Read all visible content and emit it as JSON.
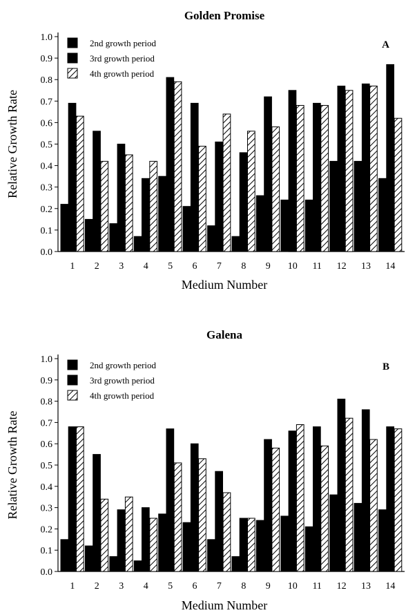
{
  "chart_data": [
    {
      "type": "bar",
      "title": "Golden Promise",
      "panel": "A",
      "xlabel": "Medium Number",
      "ylabel": "Relative Growth Rate",
      "ylim": [
        0,
        1.0
      ],
      "yticks": [
        "0.0",
        "0.1",
        "0.2",
        "0.3",
        "0.4",
        "0.5",
        "0.6",
        "0.7",
        "0.8",
        "0.9",
        "1.0"
      ],
      "categories": [
        "1",
        "2",
        "3",
        "4",
        "5",
        "6",
        "7",
        "8",
        "9",
        "10",
        "11",
        "12",
        "13",
        "14"
      ],
      "legend_position": "top-left",
      "series": [
        {
          "name": "2nd growth period",
          "style": "solid",
          "values": [
            0.22,
            0.15,
            0.13,
            0.07,
            0.35,
            0.21,
            0.12,
            0.07,
            0.26,
            0.24,
            0.24,
            0.42,
            0.42,
            0.34
          ]
        },
        {
          "name": "3rd growth period",
          "style": "solid",
          "values": [
            0.69,
            0.56,
            0.5,
            0.34,
            0.81,
            0.69,
            0.51,
            0.46,
            0.72,
            0.75,
            0.69,
            0.77,
            0.78,
            0.87
          ]
        },
        {
          "name": "4th growth period",
          "style": "hatched",
          "values": [
            0.63,
            0.42,
            0.45,
            0.42,
            0.79,
            0.49,
            0.64,
            0.56,
            0.58,
            0.68,
            0.68,
            0.75,
            0.77,
            0.62
          ]
        }
      ]
    },
    {
      "type": "bar",
      "title": "Galena",
      "panel": "B",
      "xlabel": "Medium Number",
      "ylabel": "Relative Growth Rate",
      "ylim": [
        0,
        1.0
      ],
      "yticks": [
        "0.0",
        "0.1",
        "0.2",
        "0.3",
        "0.4",
        "0.5",
        "0.6",
        "0.7",
        "0.8",
        "0.9",
        "1.0"
      ],
      "categories": [
        "1",
        "2",
        "3",
        "4",
        "5",
        "6",
        "7",
        "8",
        "9",
        "10",
        "11",
        "12",
        "13",
        "14"
      ],
      "legend_position": "top-left",
      "series": [
        {
          "name": "2nd growth period",
          "style": "solid",
          "values": [
            0.15,
            0.12,
            0.07,
            0.05,
            0.27,
            0.23,
            0.15,
            0.07,
            0.24,
            0.26,
            0.21,
            0.36,
            0.32,
            0.29
          ]
        },
        {
          "name": "3rd growth period",
          "style": "solid",
          "values": [
            0.68,
            0.55,
            0.29,
            0.3,
            0.67,
            0.6,
            0.47,
            0.25,
            0.62,
            0.66,
            0.68,
            0.81,
            0.76,
            0.68
          ]
        },
        {
          "name": "4th growth period",
          "style": "hatched",
          "values": [
            0.68,
            0.34,
            0.35,
            0.25,
            0.51,
            0.53,
            0.37,
            0.25,
            0.58,
            0.69,
            0.59,
            0.72,
            0.62,
            0.67
          ]
        }
      ]
    }
  ],
  "colors": {
    "bar": "#000000",
    "hatch": "#000000",
    "background": "#ffffff"
  }
}
